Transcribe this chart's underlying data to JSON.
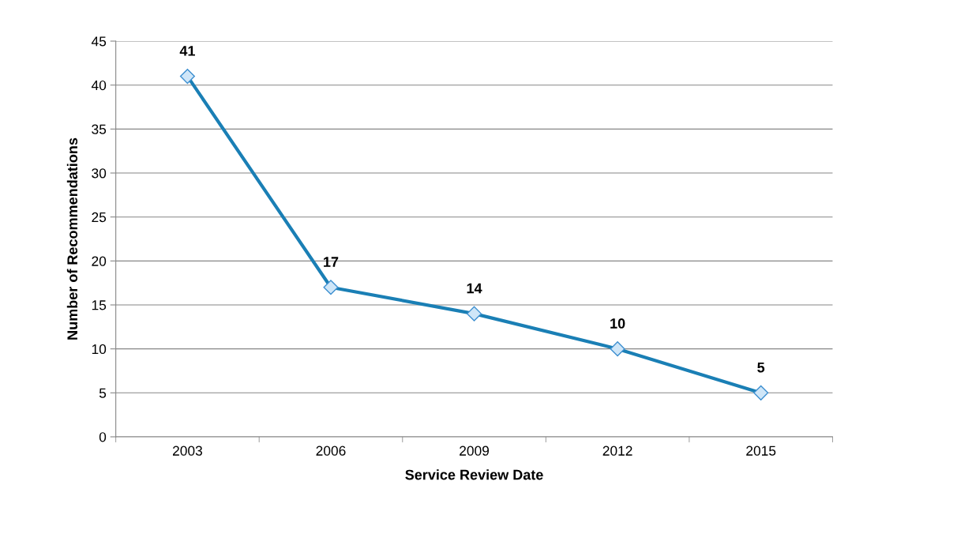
{
  "chart_data": {
    "type": "line",
    "xlabel": "Service Review Date",
    "ylabel": "Number of Recommendations",
    "categories": [
      "2003",
      "2006",
      "2009",
      "2012",
      "2015"
    ],
    "series": [
      {
        "color": "#1a7fb5",
        "values": [
          41,
          17,
          14,
          10,
          5
        ]
      }
    ],
    "ylim": [
      0,
      45
    ],
    "yticks": [
      0,
      5,
      10,
      15,
      20,
      25,
      30,
      35,
      40,
      45
    ],
    "grid": "y",
    "marker": "diamond",
    "line_style": "solid",
    "data_labels": true
  }
}
